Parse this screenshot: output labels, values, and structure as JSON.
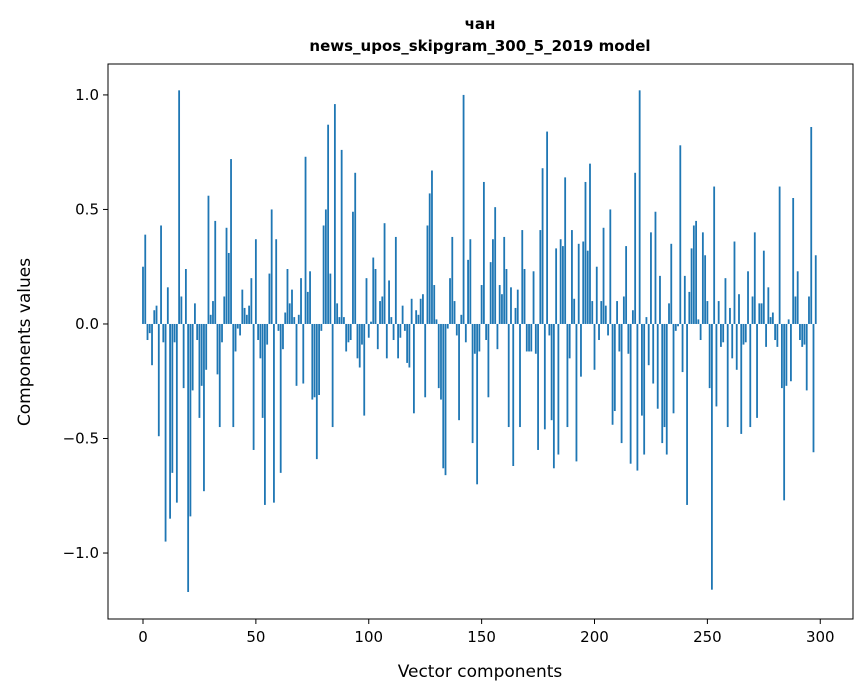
{
  "chart_data": {
    "type": "bar",
    "title": "чан",
    "subtitle": "news_upos_skipgram_300_5_2019 model",
    "xlabel": "Vector components",
    "ylabel": "Components values",
    "xlim": [
      -15.5,
      314.5
    ],
    "ylim": [
      -1.288,
      1.135
    ],
    "xticks": [
      0,
      50,
      100,
      150,
      200,
      250,
      300
    ],
    "xtick_labels": [
      "0",
      "50",
      "100",
      "150",
      "200",
      "250",
      "300"
    ],
    "yticks": [
      1.0,
      0.5,
      0.0,
      -0.5,
      -1.0
    ],
    "ytick_labels": [
      "1.0",
      "0.5",
      "0.0",
      "−0.5",
      "−1.0"
    ],
    "grid": false,
    "bar_color": "#1f77b4",
    "values": [
      0.25,
      0.39,
      -0.07,
      -0.04,
      -0.18,
      0.06,
      0.08,
      -0.49,
      0.43,
      -0.08,
      -0.95,
      0.16,
      -0.85,
      -0.65,
      -0.08,
      -0.78,
      1.02,
      0.12,
      -0.28,
      0.24,
      -1.17,
      -0.84,
      -0.29,
      0.09,
      -0.07,
      -0.41,
      -0.27,
      -0.73,
      -0.2,
      0.56,
      0.04,
      0.1,
      0.45,
      -0.22,
      -0.45,
      -0.08,
      0.12,
      0.42,
      0.31,
      0.72,
      -0.45,
      -0.12,
      -0.02,
      -0.05,
      0.15,
      0.07,
      0.04,
      0.08,
      0.2,
      -0.55,
      0.37,
      -0.07,
      -0.15,
      -0.41,
      -0.79,
      -0.09,
      0.22,
      0.5,
      -0.78,
      0.37,
      -0.03,
      -0.65,
      -0.11,
      0.05,
      0.24,
      0.09,
      0.15,
      0.03,
      -0.27,
      0.04,
      0.2,
      -0.26,
      0.73,
      0.14,
      0.23,
      -0.33,
      -0.32,
      -0.59,
      -0.31,
      -0.03,
      0.43,
      0.5,
      0.87,
      0.22,
      -0.45,
      0.96,
      0.09,
      0.03,
      0.76,
      0.03,
      -0.12,
      -0.08,
      -0.07,
      0.49,
      0.66,
      -0.15,
      -0.19,
      -0.09,
      -0.4,
      0.2,
      -0.06,
      0.01,
      0.29,
      0.24,
      -0.11,
      0.1,
      0.12,
      0.44,
      -0.15,
      0.19,
      0.03,
      -0.07,
      0.38,
      -0.15,
      -0.06,
      0.08,
      -0.03,
      -0.17,
      -0.19,
      0.11,
      -0.39,
      0.06,
      0.04,
      0.11,
      0.13,
      -0.32,
      0.43,
      0.57,
      0.67,
      0.17,
      0.02,
      -0.28,
      -0.33,
      -0.63,
      -0.66,
      -0.02,
      0.2,
      0.38,
      0.1,
      -0.05,
      -0.42,
      0.04,
      1.0,
      -0.08,
      0.28,
      0.37,
      -0.52,
      -0.13,
      -0.7,
      -0.12,
      0.17,
      0.62,
      -0.07,
      -0.32,
      0.27,
      0.37,
      0.51,
      -0.11,
      0.17,
      0.13,
      0.38,
      0.24,
      -0.45,
      0.16,
      -0.62,
      0.07,
      0.15,
      -0.45,
      0.41,
      0.24,
      -0.12,
      -0.12,
      -0.12,
      0.23,
      -0.13,
      -0.55,
      0.41,
      0.68,
      -0.46,
      0.84,
      -0.05,
      -0.42,
      -0.63,
      0.33,
      -0.57,
      0.37,
      0.34,
      0.64,
      -0.45,
      -0.15,
      0.41,
      0.11,
      -0.6,
      0.35,
      -0.23,
      0.36,
      0.62,
      0.32,
      0.7,
      0.1,
      -0.2,
      0.25,
      -0.07,
      0.1,
      0.42,
      0.08,
      -0.05,
      0.5,
      -0.44,
      -0.38,
      0.1,
      -0.12,
      -0.52,
      0.12,
      0.34,
      -0.13,
      -0.61,
      0.06,
      0.66,
      -0.64,
      1.02,
      -0.4,
      -0.57,
      0.03,
      -0.18,
      0.4,
      -0.26,
      0.49,
      -0.37,
      0.21,
      -0.52,
      -0.45,
      -0.57,
      0.09,
      0.35,
      -0.39,
      -0.03,
      -0.01,
      0.78,
      -0.21,
      0.21,
      -0.79,
      0.14,
      0.33,
      0.43,
      0.45,
      0.02,
      -0.07,
      0.4,
      0.3,
      0.1,
      -0.28,
      -1.16,
      0.6,
      -0.36,
      0.1,
      -0.1,
      -0.08,
      0.2,
      -0.45,
      0.07,
      -0.15,
      0.36,
      -0.2,
      0.13,
      -0.48,
      -0.09,
      -0.08,
      0.23,
      -0.45,
      0.12,
      0.4,
      -0.41,
      0.09,
      0.09,
      0.32,
      -0.1,
      0.16,
      0.03,
      0.05,
      -0.07,
      -0.1,
      0.6,
      -0.28,
      -0.77,
      -0.27,
      0.02,
      -0.25,
      0.55,
      0.12,
      0.23,
      -0.07,
      -0.1,
      -0.09,
      -0.29,
      0.12,
      0.86,
      -0.56,
      0.3
    ]
  }
}
